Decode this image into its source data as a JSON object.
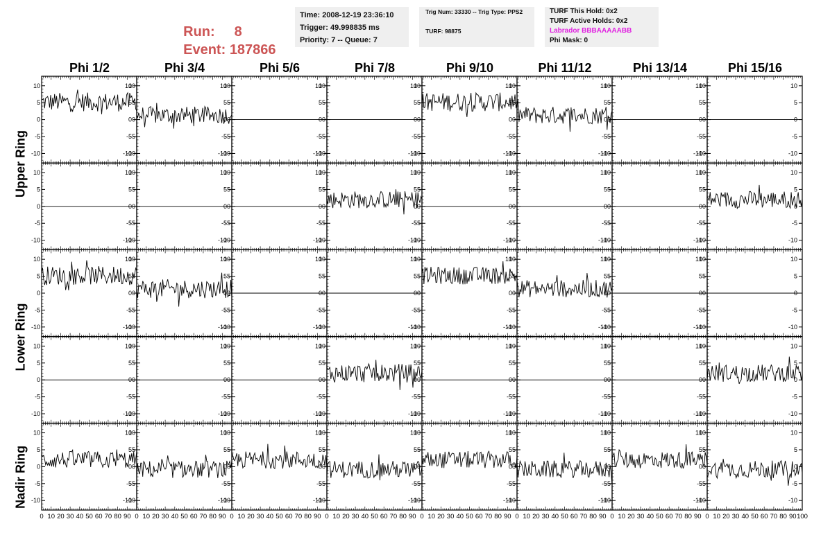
{
  "header": {
    "run_label": "Run:",
    "run_value": "8",
    "event_label": "Event:",
    "event_value": "187866",
    "box1": {
      "time": "Time: 2008-12-19 23:36:10",
      "trigger": "Trigger: 49.998835 ms",
      "priority": "Priority: 7 -- Queue: 7"
    },
    "box2": {
      "trig": "Trig Num: 33330 -- Trig Type: PPS2",
      "turf": "TURF: 98875"
    },
    "box3": {
      "this_hold": "TURF This Hold: 0x2",
      "active_holds": "TURF Active Holds: 0x2",
      "labrador": "Labrador BBBAAAAABB",
      "phi_mask": "Phi Mask: 0"
    }
  },
  "colors": {
    "run_event": "#cc5555",
    "labrador": "#e020e0",
    "box_bg": "#efefef",
    "trace": "#000000"
  },
  "chart_data": {
    "type": "line",
    "columns": [
      "Phi 1/2",
      "Phi 3/4",
      "Phi 5/6",
      "Phi 7/8",
      "Phi 9/10",
      "Phi 11/12",
      "Phi 13/14",
      "Phi 15/16"
    ],
    "rows": [
      "Upper Ring",
      "Upper Ring",
      "Lower Ring",
      "Lower Ring",
      "Nadir Ring"
    ],
    "ring_labels": [
      "Upper Ring",
      "Lower Ring",
      "Nadir Ring"
    ],
    "xlim": [
      0,
      100
    ],
    "ylim": [
      -12,
      12
    ],
    "y_ticks": [
      -10,
      -5,
      0,
      5,
      10
    ],
    "x_tick_labels": [
      "0",
      "10",
      "20",
      "30",
      "40",
      "50",
      "60",
      "70",
      "80",
      "90",
      "100"
    ],
    "n_samples": 96,
    "panels": [
      [
        {
          "base": 5.2,
          "amp": 2.8
        },
        {
          "base": 1.3,
          "amp": 2.6
        },
        {
          "base": 0,
          "amp": 0
        },
        {
          "base": 0,
          "amp": 0
        },
        {
          "base": 5.2,
          "amp": 2.8
        },
        {
          "base": 1.3,
          "amp": 2.6
        },
        {
          "base": 0,
          "amp": 0
        },
        {
          "base": 0,
          "amp": 0
        }
      ],
      [
        {
          "base": 0,
          "amp": 0
        },
        {
          "base": 0,
          "amp": 0
        },
        {
          "base": 0,
          "amp": 0
        },
        {
          "base": 2.0,
          "amp": 2.6
        },
        {
          "base": 0,
          "amp": 0
        },
        {
          "base": 0,
          "amp": 0
        },
        {
          "base": 0,
          "amp": 0
        },
        {
          "base": 2.0,
          "amp": 2.6
        }
      ],
      [
        {
          "base": 5.2,
          "amp": 2.8
        },
        {
          "base": 1.3,
          "amp": 2.8
        },
        {
          "base": 0,
          "amp": 0
        },
        {
          "base": 0,
          "amp": 0
        },
        {
          "base": 5.2,
          "amp": 2.6
        },
        {
          "base": 1.3,
          "amp": 2.6
        },
        {
          "base": 0,
          "amp": 0
        },
        {
          "base": 0,
          "amp": 0
        }
      ],
      [
        {
          "base": 0,
          "amp": 0
        },
        {
          "base": 0,
          "amp": 0
        },
        {
          "base": 0,
          "amp": 0
        },
        {
          "base": 2.0,
          "amp": 2.8
        },
        {
          "base": 0,
          "amp": 0
        },
        {
          "base": 0,
          "amp": 0
        },
        {
          "base": 0,
          "amp": 0
        },
        {
          "base": 2.0,
          "amp": 2.6
        }
      ],
      [
        {
          "base": 2.0,
          "amp": 2.6
        },
        {
          "base": -0.8,
          "amp": 2.6
        },
        {
          "base": 2.0,
          "amp": 2.6
        },
        {
          "base": -0.8,
          "amp": 2.6
        },
        {
          "base": 2.0,
          "amp": 2.6
        },
        {
          "base": -0.8,
          "amp": 2.6
        },
        {
          "base": 2.0,
          "amp": 2.6
        },
        {
          "base": -0.8,
          "amp": 2.6
        }
      ]
    ],
    "grid": false,
    "legend": "none"
  }
}
